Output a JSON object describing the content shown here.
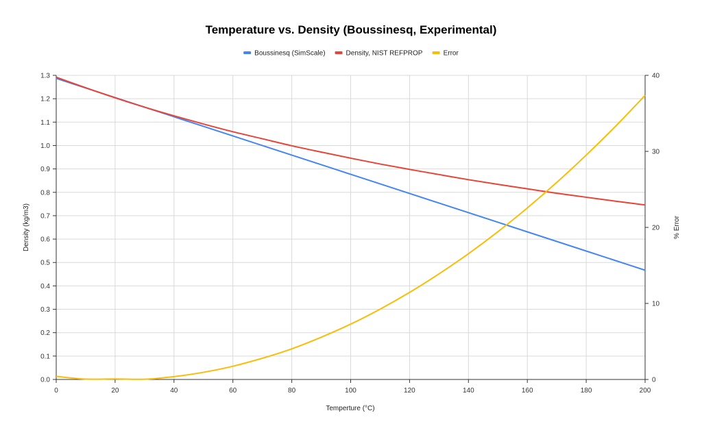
{
  "chart_data": {
    "type": "line",
    "title": "Temperature vs. Density (Boussinesq, Experimental)",
    "xlabel": "Temperture (°C)",
    "ylabel": "Density (kg/m3)",
    "y2label": "% Error",
    "xlim": [
      0,
      200
    ],
    "ylim": [
      0,
      1.3
    ],
    "y2lim": [
      0,
      40
    ],
    "xticks": [
      0,
      20,
      40,
      60,
      80,
      100,
      120,
      140,
      160,
      180,
      200
    ],
    "yticks": [
      0.0,
      0.1,
      0.2,
      0.3,
      0.4,
      0.5,
      0.6,
      0.7,
      0.8,
      0.9,
      1.0,
      1.1,
      1.2,
      1.3
    ],
    "y2ticks": [
      0,
      10,
      20,
      30,
      40
    ],
    "grid": true,
    "legend_position": "top",
    "x": [
      0,
      10,
      20,
      30,
      40,
      50,
      60,
      70,
      80,
      90,
      100,
      110,
      120,
      130,
      140,
      150,
      160,
      170,
      180,
      190,
      200
    ],
    "series": [
      {
        "name": "Boussinesq (SimScale)",
        "axis": "left",
        "color": "#4285f4",
        "values": [
          1.287,
          1.246,
          1.205,
          1.164,
          1.123,
          1.082,
          1.041,
          1.0,
          0.959,
          0.918,
          0.877,
          0.836,
          0.795,
          0.754,
          0.713,
          0.672,
          0.631,
          0.59,
          0.549,
          0.508,
          0.467
        ]
      },
      {
        "name": "Density, NIST REFPROP",
        "axis": "left",
        "color": "#ea4335",
        "values": [
          1.292,
          1.247,
          1.204,
          1.164,
          1.127,
          1.092,
          1.059,
          1.029,
          0.999,
          0.972,
          0.946,
          0.921,
          0.898,
          0.876,
          0.854,
          0.834,
          0.815,
          0.796,
          0.779,
          0.762,
          0.746
        ]
      },
      {
        "name": "Error",
        "axis": "right",
        "color": "#fbbc04",
        "values": [
          0.41,
          0.05,
          0.07,
          0.03,
          0.37,
          0.94,
          1.74,
          2.79,
          4.03,
          5.56,
          7.28,
          9.25,
          11.45,
          13.89,
          16.54,
          19.43,
          22.56,
          25.92,
          29.51,
          33.32,
          37.37
        ]
      }
    ]
  }
}
